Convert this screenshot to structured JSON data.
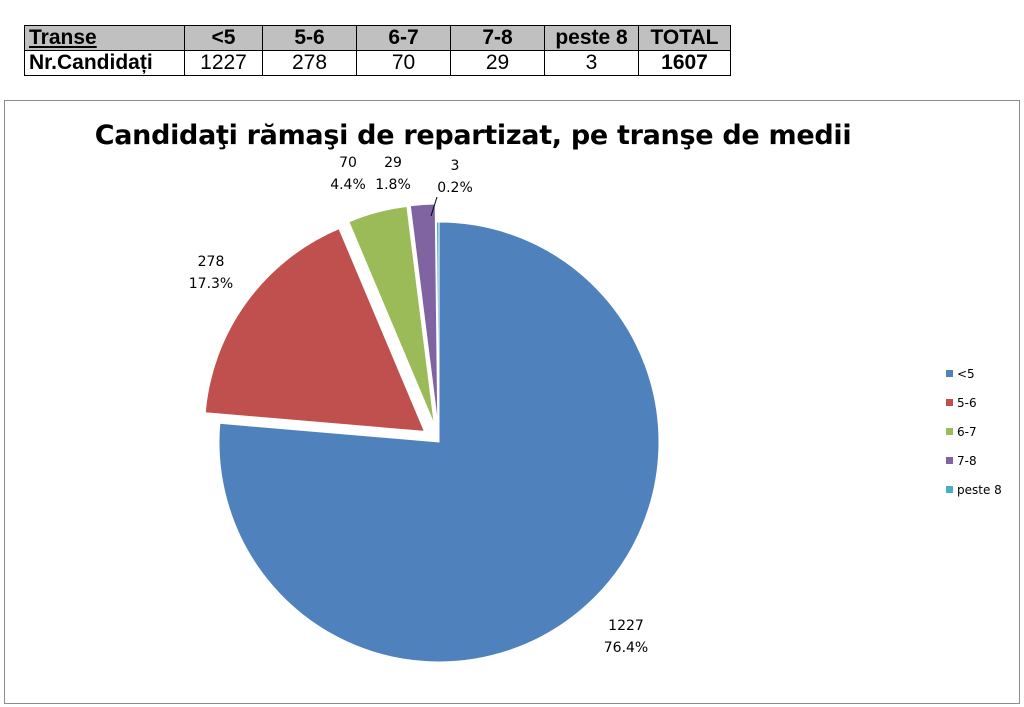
{
  "table": {
    "header": [
      "Transe",
      "<5",
      "5-6",
      "6-7",
      "7-8",
      "peste 8",
      "TOTAL"
    ],
    "row_label": "Nr.Candidați",
    "values": [
      "1227",
      "278",
      "70",
      "29",
      "3"
    ],
    "total": "1607"
  },
  "chart_data": {
    "type": "pie",
    "title": "Candidaţi rămaşi de repartizat, pe tranşe de medii",
    "categories": [
      "<5",
      "5-6",
      "6-7",
      "7-8",
      "peste 8"
    ],
    "values": [
      1227,
      278,
      70,
      29,
      3
    ],
    "percent_labels": [
      "76.4%",
      "17.3%",
      "4.4%",
      "1.8%",
      "0.2%"
    ],
    "colors": [
      "#4f81bd",
      "#c0504d",
      "#9bbb59",
      "#8064a2",
      "#4bacc6"
    ],
    "exploded": true,
    "legend": {
      "placement": "right",
      "entries": [
        "<5",
        "5-6",
        "6-7",
        "7-8",
        "peste 8"
      ]
    }
  }
}
